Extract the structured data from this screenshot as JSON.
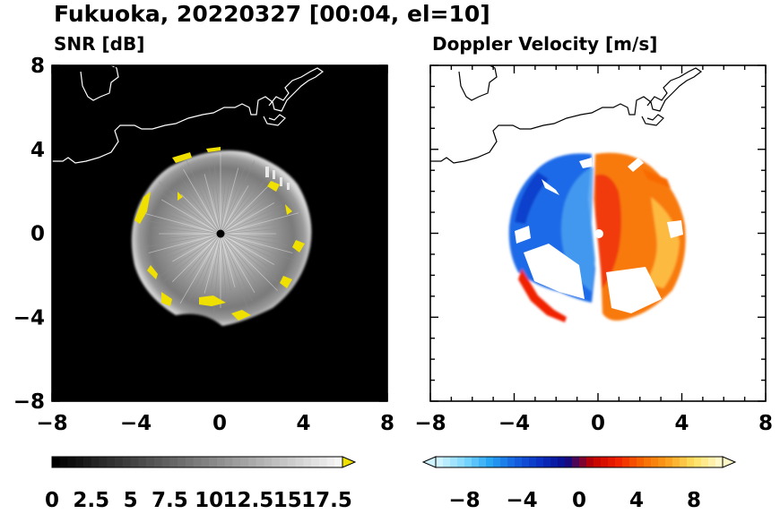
{
  "title": "Fukuoka, 20220327 [00:04, el=10]",
  "chart_data": [
    {
      "type": "heatmap",
      "title": "SNR [dB]",
      "xlim": [
        -8,
        8
      ],
      "ylim": [
        -8,
        8
      ],
      "x_ticks": [
        "−8",
        "−4",
        "0",
        "4",
        "8"
      ],
      "y_ticks": [
        "8",
        "4",
        "0",
        "−4",
        "−8"
      ],
      "radar_center": [
        0,
        0
      ],
      "echo_radius_approx": 4.2,
      "colorbar": {
        "min": 0,
        "max": 18.5,
        "tick_labels": [
          "0",
          "2.5",
          "5",
          "7.5",
          "10",
          "12.5",
          "15",
          "17.5"
        ],
        "tick_values": [
          0,
          2.5,
          5,
          7.5,
          10,
          12.5,
          15,
          17.5
        ],
        "extend": "max",
        "extend_color": "#f0e000",
        "palette": [
          "#000000",
          "#ffffff"
        ]
      }
    },
    {
      "type": "heatmap",
      "title": "Doppler Velocity [m/s]",
      "xlim": [
        -8,
        8
      ],
      "ylim": [
        -8,
        8
      ],
      "x_ticks": [
        "−8",
        "−4",
        "0",
        "4",
        "8"
      ],
      "y_ticks": [
        "8",
        "4",
        "0",
        "−4",
        "−8"
      ],
      "radar_center": [
        0,
        0
      ],
      "colorbar": {
        "min": -10,
        "max": 10,
        "tick_labels": [
          "−8",
          "−4",
          "0",
          "4",
          "8"
        ],
        "tick_values": [
          -8,
          -4,
          0,
          4,
          8
        ],
        "extend": "both",
        "palette": [
          "#cff4ff",
          "#7fd8ff",
          "#27a6f5",
          "#1560e0",
          "#0a2fc0",
          "#0a0a8a",
          "#c00000",
          "#f02000",
          "#f86a00",
          "#fba020",
          "#ffe060",
          "#fff8c8"
        ]
      }
    }
  ]
}
